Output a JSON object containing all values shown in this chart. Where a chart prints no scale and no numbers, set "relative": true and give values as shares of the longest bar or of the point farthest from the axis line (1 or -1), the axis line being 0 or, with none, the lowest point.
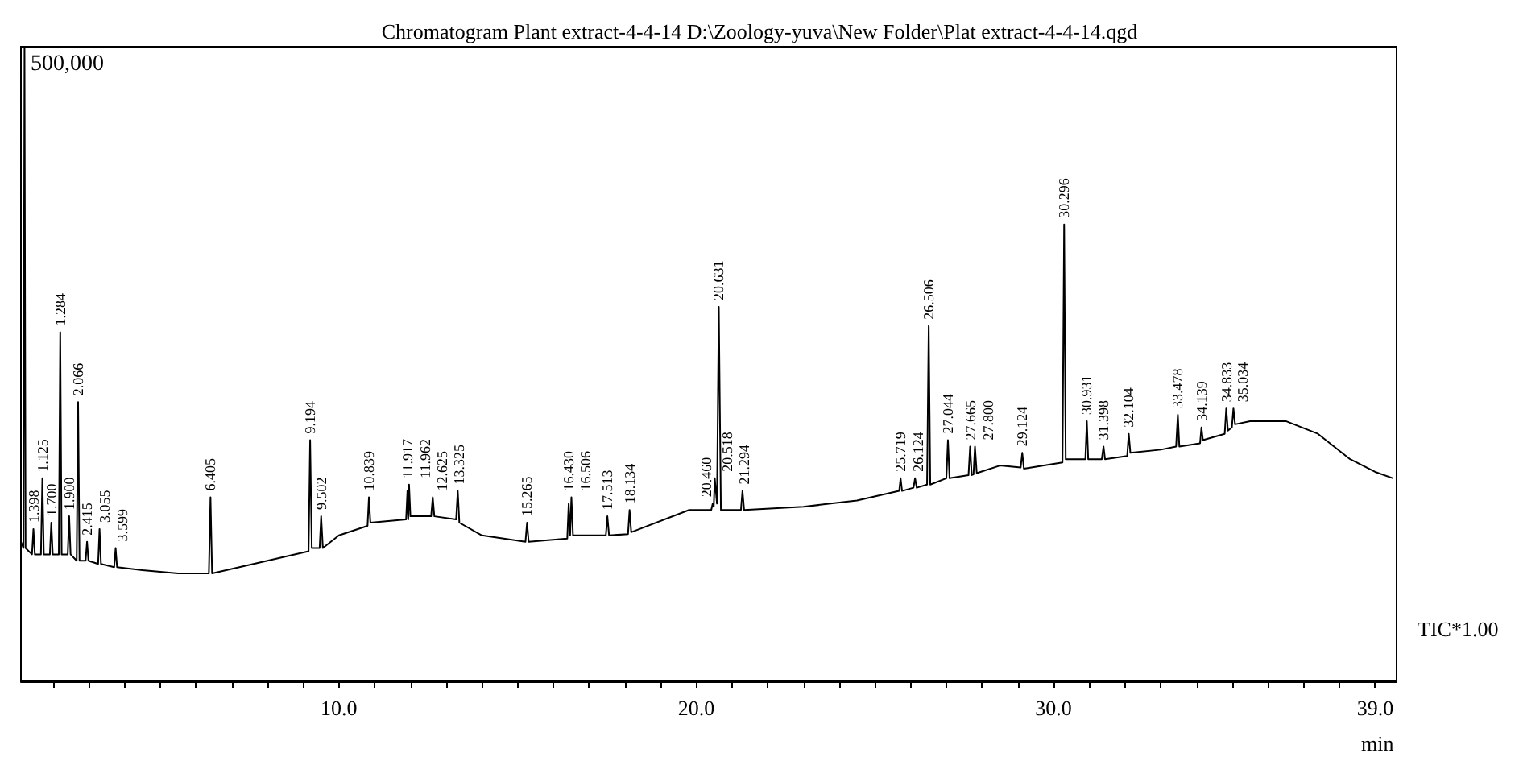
{
  "chart_data": {
    "type": "line",
    "title": "Chromatogram Plant extract-4-4-14 D:\\Zoology-yuva\\New Folder\\Plat extract-4-4-14.qgd",
    "xlabel": "min",
    "relative": true,
    "xlim": [
      1.1,
      39.6
    ],
    "xticks": [
      {
        "value": 2,
        "label": null
      },
      {
        "value": 3,
        "label": null
      },
      {
        "value": 4,
        "label": null
      },
      {
        "value": 5,
        "label": null
      },
      {
        "value": 6,
        "label": null
      },
      {
        "value": 7,
        "label": null
      },
      {
        "value": 8,
        "label": null
      },
      {
        "value": 9,
        "label": null
      },
      {
        "value": 10,
        "label": "10.0"
      },
      {
        "value": 11,
        "label": null
      },
      {
        "value": 12,
        "label": null
      },
      {
        "value": 13,
        "label": null
      },
      {
        "value": 14,
        "label": null
      },
      {
        "value": 15,
        "label": null
      },
      {
        "value": 16,
        "label": null
      },
      {
        "value": 17,
        "label": null
      },
      {
        "value": 18,
        "label": null
      },
      {
        "value": 19,
        "label": null
      },
      {
        "value": 20,
        "label": "20.0"
      },
      {
        "value": 21,
        "label": null
      },
      {
        "value": 22,
        "label": null
      },
      {
        "value": 23,
        "label": null
      },
      {
        "value": 24,
        "label": null
      },
      {
        "value": 25,
        "label": null
      },
      {
        "value": 26,
        "label": null
      },
      {
        "value": 27,
        "label": null
      },
      {
        "value": 28,
        "label": null
      },
      {
        "value": 29,
        "label": null
      },
      {
        "value": 30,
        "label": "30.0"
      },
      {
        "value": 31,
        "label": null
      },
      {
        "value": 32,
        "label": null
      },
      {
        "value": 33,
        "label": null
      },
      {
        "value": 34,
        "label": null
      },
      {
        "value": 35,
        "label": null
      },
      {
        "value": 36,
        "label": null
      },
      {
        "value": 37,
        "label": null
      },
      {
        "value": 38,
        "label": null
      },
      {
        "value": 39,
        "label": "39.0"
      }
    ],
    "series": [
      {
        "color": "#000000",
        "x": [
          1.1,
          1.17,
          1.2,
          1.23,
          1.41,
          1.45,
          1.49,
          1.66,
          1.7,
          1.74,
          1.91,
          1.95,
          1.99,
          2.16,
          2.2,
          2.24,
          2.41,
          2.45,
          2.49,
          2.66,
          2.7,
          2.74,
          2.91,
          2.95,
          2.99,
          3.26,
          3.3,
          3.34,
          3.71,
          3.75,
          3.79,
          4.5,
          5.5,
          6.36,
          6.405,
          6.45,
          8.0,
          9.15,
          9.194,
          9.24,
          9.46,
          9.502,
          9.55,
          10.0,
          10.8,
          10.839,
          10.88,
          11.88,
          11.917,
          11.94,
          11.962,
          12.0,
          12.58,
          12.625,
          12.67,
          13.28,
          13.325,
          13.37,
          14.0,
          15.22,
          15.265,
          15.31,
          16.39,
          16.43,
          16.47,
          16.506,
          16.55,
          17.47,
          17.513,
          17.56,
          18.09,
          18.134,
          18.18,
          19.8,
          20.42,
          20.46,
          20.49,
          20.518,
          20.58,
          20.631,
          20.69,
          21.25,
          21.294,
          21.34,
          23.0,
          24.5,
          25.68,
          25.719,
          25.76,
          26.08,
          26.124,
          26.17,
          26.46,
          26.506,
          26.55,
          27.0,
          27.044,
          27.09,
          27.62,
          27.665,
          27.71,
          27.76,
          27.8,
          27.85,
          28.5,
          29.08,
          29.124,
          29.17,
          30.25,
          30.296,
          30.34,
          30.89,
          30.931,
          30.97,
          31.35,
          31.398,
          31.44,
          32.06,
          32.104,
          32.15,
          33.0,
          33.43,
          33.478,
          33.52,
          34.1,
          34.139,
          34.18,
          34.79,
          34.833,
          34.88,
          34.99,
          35.034,
          35.08,
          35.5,
          36.5,
          37.4,
          38.3,
          39.0,
          39.5
        ],
        "values": [
          0.22,
          0.21,
          1.0,
          0.21,
          0.2,
          0.24,
          0.2,
          0.2,
          0.32,
          0.2,
          0.2,
          0.25,
          0.2,
          0.2,
          0.55,
          0.2,
          0.2,
          0.26,
          0.2,
          0.19,
          0.44,
          0.19,
          0.19,
          0.22,
          0.19,
          0.185,
          0.24,
          0.185,
          0.18,
          0.21,
          0.18,
          0.175,
          0.17,
          0.17,
          0.29,
          0.17,
          0.19,
          0.205,
          0.38,
          0.21,
          0.21,
          0.26,
          0.21,
          0.23,
          0.245,
          0.29,
          0.25,
          0.255,
          0.3,
          0.255,
          0.31,
          0.26,
          0.26,
          0.29,
          0.26,
          0.255,
          0.3,
          0.25,
          0.23,
          0.22,
          0.25,
          0.22,
          0.225,
          0.28,
          0.23,
          0.29,
          0.23,
          0.23,
          0.26,
          0.23,
          0.232,
          0.27,
          0.235,
          0.27,
          0.27,
          0.28,
          0.275,
          0.32,
          0.28,
          0.59,
          0.27,
          0.27,
          0.3,
          0.27,
          0.275,
          0.285,
          0.3,
          0.32,
          0.3,
          0.305,
          0.32,
          0.305,
          0.31,
          0.56,
          0.31,
          0.32,
          0.38,
          0.32,
          0.325,
          0.37,
          0.325,
          0.326,
          0.37,
          0.328,
          0.34,
          0.337,
          0.36,
          0.335,
          0.345,
          0.72,
          0.35,
          0.35,
          0.41,
          0.35,
          0.35,
          0.37,
          0.35,
          0.355,
          0.39,
          0.36,
          0.365,
          0.37,
          0.42,
          0.37,
          0.375,
          0.4,
          0.38,
          0.39,
          0.43,
          0.395,
          0.4,
          0.43,
          0.405,
          0.41,
          0.41,
          0.39,
          0.35,
          0.33,
          0.32
        ]
      }
    ],
    "annotations": [
      "500,000",
      "TIC*1.00",
      {
        "text": "1.125",
        "x": 1.7,
        "y": 0.32
      },
      {
        "text": "1.284",
        "x": 2.2,
        "y": 0.55
      },
      {
        "text": "1.398",
        "x": 1.45,
        "y": 0.24
      },
      {
        "text": "1.700",
        "x": 1.95,
        "y": 0.25
      },
      {
        "text": "1.900",
        "x": 2.45,
        "y": 0.26
      },
      {
        "text": "2.066",
        "x": 2.7,
        "y": 0.44
      },
      {
        "text": "2.415",
        "x": 2.95,
        "y": 0.22
      },
      {
        "text": "3.055",
        "x": 3.3,
        "y": 0.24
      },
      {
        "text": "3.599",
        "x": 3.75,
        "y": 0.21
      },
      {
        "text": "6.405",
        "x": 6.405,
        "y": 0.29
      },
      {
        "text": "9.194",
        "x": 9.194,
        "y": 0.38
      },
      {
        "text": "9.502",
        "x": 9.502,
        "y": 0.26
      },
      {
        "text": "10.839",
        "x": 10.839,
        "y": 0.29
      },
      {
        "text": "11.917",
        "x": 11.917,
        "y": 0.3
      },
      {
        "text": "11.962",
        "x": 11.962,
        "y": 0.31
      },
      {
        "text": "12.625",
        "x": 12.625,
        "y": 0.29
      },
      {
        "text": "13.325",
        "x": 13.325,
        "y": 0.3
      },
      {
        "text": "15.265",
        "x": 15.265,
        "y": 0.25
      },
      {
        "text": "16.430",
        "x": 16.43,
        "y": 0.28
      },
      {
        "text": "16.506",
        "x": 16.506,
        "y": 0.29
      },
      {
        "text": "17.513",
        "x": 17.513,
        "y": 0.26
      },
      {
        "text": "18.134",
        "x": 18.134,
        "y": 0.27
      },
      {
        "text": "20.460",
        "x": 20.46,
        "y": 0.28
      },
      {
        "text": "20.518",
        "x": 20.518,
        "y": 0.32
      },
      {
        "text": "20.631",
        "x": 20.631,
        "y": 0.59
      },
      {
        "text": "21.294",
        "x": 21.294,
        "y": 0.3
      },
      {
        "text": "25.719",
        "x": 25.719,
        "y": 0.32
      },
      {
        "text": "26.124",
        "x": 26.124,
        "y": 0.32
      },
      {
        "text": "26.506",
        "x": 26.506,
        "y": 0.56
      },
      {
        "text": "27.044",
        "x": 27.044,
        "y": 0.38
      },
      {
        "text": "27.665",
        "x": 27.665,
        "y": 0.37
      },
      {
        "text": "27.800",
        "x": 27.8,
        "y": 0.37
      },
      {
        "text": "29.124",
        "x": 29.124,
        "y": 0.36
      },
      {
        "text": "30.296",
        "x": 30.296,
        "y": 0.72
      },
      {
        "text": "30.931",
        "x": 30.931,
        "y": 0.41
      },
      {
        "text": "31.398",
        "x": 31.398,
        "y": 0.37
      },
      {
        "text": "32.104",
        "x": 32.104,
        "y": 0.39
      },
      {
        "text": "33.478",
        "x": 33.478,
        "y": 0.42
      },
      {
        "text": "34.139",
        "x": 34.139,
        "y": 0.4
      },
      {
        "text": "34.833",
        "x": 34.833,
        "y": 0.43
      },
      {
        "text": "35.034",
        "x": 35.034,
        "y": 0.43
      }
    ]
  }
}
